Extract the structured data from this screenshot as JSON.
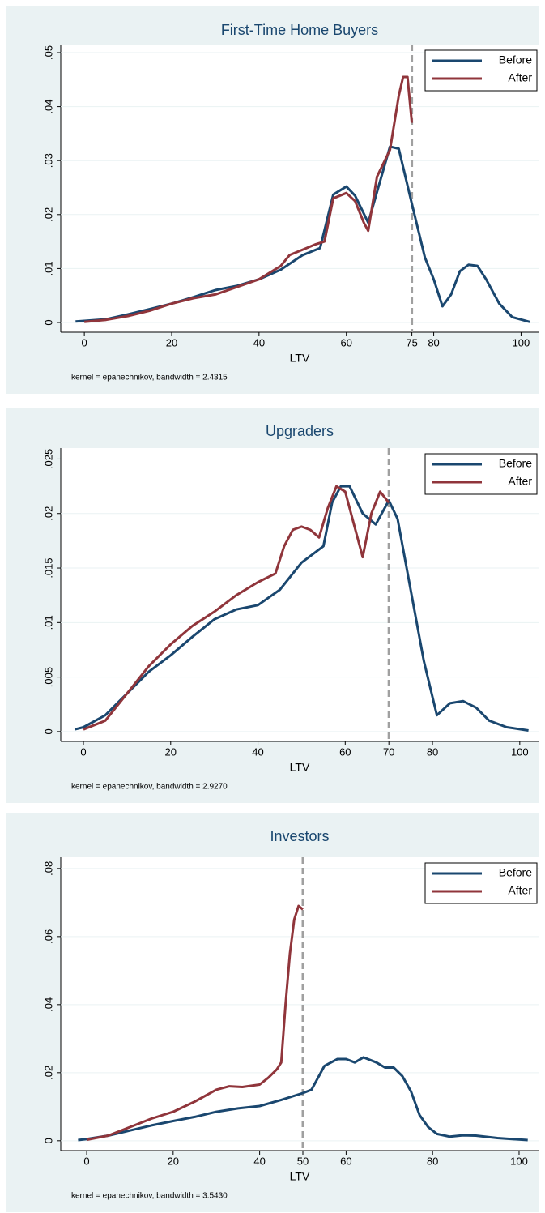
{
  "chart_data": [
    {
      "type": "line",
      "title": "First-Time Home Buyers",
      "x_label": "LTV",
      "note": "kernel = epanechnikov, bandwidth = 2.4315",
      "legend": "top-right",
      "xline": 75,
      "xlim": [
        -5.4,
        104
      ],
      "xticks": [
        0,
        20,
        40,
        60,
        75,
        80,
        100
      ],
      "ylim": [
        -0.0018,
        0.0515
      ],
      "yticks": [
        0,
        {
          "value": 0.01,
          "label": ".01"
        },
        {
          "value": 0.02,
          "label": ".02"
        },
        {
          "value": 0.03,
          "label": ".03"
        },
        {
          "value": 0.04,
          "label": ".04"
        },
        {
          "value": 0.05,
          "label": ".05"
        }
      ],
      "series": [
        {
          "name": "Before",
          "color": "#1a476f",
          "x": [
            -2,
            0,
            5,
            10,
            15,
            20,
            25,
            30,
            35,
            40,
            45,
            50,
            54,
            57,
            60,
            62,
            65,
            70,
            72,
            75,
            78,
            80,
            82,
            84,
            86,
            88,
            90,
            92,
            95,
            98,
            102
          ],
          "values": [
            0.0002,
            0.0003,
            0.0006,
            0.0015,
            0.0025,
            0.0035,
            0.0047,
            0.006,
            0.0068,
            0.008,
            0.0098,
            0.0125,
            0.0138,
            0.0237,
            0.0252,
            0.0235,
            0.0185,
            0.0326,
            0.0322,
            0.022,
            0.012,
            0.008,
            0.003,
            0.0052,
            0.0095,
            0.0107,
            0.0105,
            0.008,
            0.0035,
            0.001,
            0.0001
          ]
        },
        {
          "name": "After",
          "color": "#90353b",
          "x": [
            0,
            5,
            10,
            15,
            20,
            25,
            30,
            35,
            40,
            45,
            47,
            50,
            53,
            55,
            57,
            60,
            62,
            64,
            65,
            67,
            70,
            72,
            73,
            74,
            75
          ],
          "values": [
            0.0001,
            0.0005,
            0.0012,
            0.0022,
            0.0035,
            0.0045,
            0.0052,
            0.0066,
            0.008,
            0.0105,
            0.0125,
            0.0135,
            0.0145,
            0.015,
            0.023,
            0.024,
            0.0225,
            0.0185,
            0.017,
            0.027,
            0.032,
            0.042,
            0.0455,
            0.0455,
            0.037
          ]
        }
      ]
    },
    {
      "type": "line",
      "title": "Upgraders",
      "x_label": "LTV",
      "note": "kernel = epanechnikov, bandwidth = 2.9270",
      "legend": "top-right",
      "xline": 70,
      "xlim": [
        -5.2,
        104.3
      ],
      "xticks": [
        0,
        20,
        40,
        60,
        70,
        80,
        100
      ],
      "ylim": [
        -0.0009,
        0.026
      ],
      "yticks": [
        0,
        {
          "value": 0.005,
          "label": ".005"
        },
        {
          "value": 0.01,
          "label": ".01"
        },
        {
          "value": 0.015,
          "label": ".015"
        },
        {
          "value": 0.02,
          "label": ".02"
        },
        {
          "value": 0.025,
          "label": ".025"
        }
      ],
      "series": [
        {
          "name": "Before",
          "color": "#1a476f",
          "x": [
            -2,
            0,
            5,
            10,
            15,
            20,
            25,
            30,
            35,
            40,
            45,
            50,
            55,
            57,
            59,
            61,
            64,
            67,
            70,
            72,
            75,
            78,
            81,
            84,
            87,
            90,
            93,
            97,
            102
          ],
          "values": [
            0.0002,
            0.0004,
            0.0015,
            0.0035,
            0.0055,
            0.007,
            0.0087,
            0.0103,
            0.0112,
            0.0116,
            0.013,
            0.0155,
            0.017,
            0.021,
            0.0225,
            0.0225,
            0.02,
            0.019,
            0.0212,
            0.0195,
            0.013,
            0.0065,
            0.0015,
            0.0026,
            0.0028,
            0.0022,
            0.001,
            0.0004,
            0.0001
          ]
        },
        {
          "name": "After",
          "color": "#90353b",
          "x": [
            0,
            5,
            10,
            15,
            20,
            25,
            30,
            35,
            40,
            44,
            46,
            48,
            50,
            52,
            54,
            56,
            58,
            60,
            62,
            64,
            66,
            68,
            70
          ],
          "values": [
            0.0002,
            0.001,
            0.0035,
            0.006,
            0.008,
            0.0097,
            0.011,
            0.0125,
            0.0137,
            0.0145,
            0.017,
            0.0185,
            0.0188,
            0.0185,
            0.0178,
            0.0205,
            0.0225,
            0.022,
            0.019,
            0.016,
            0.02,
            0.022,
            0.021
          ]
        }
      ]
    },
    {
      "type": "line",
      "title": "Investors",
      "x_label": "LTV",
      "note": "kernel = epanechnikov, bandwidth = 3.5430",
      "legend": "top-right",
      "xline": 50,
      "xlim": [
        -6,
        104.5
      ],
      "xticks": [
        0,
        20,
        40,
        50,
        60,
        80,
        100
      ],
      "ylim": [
        -0.0029,
        0.0833
      ],
      "yticks": [
        0,
        {
          "value": 0.02,
          "label": ".02"
        },
        {
          "value": 0.04,
          "label": ".04"
        },
        {
          "value": 0.06,
          "label": ".06"
        },
        {
          "value": 0.08,
          "label": ".08"
        }
      ],
      "series": [
        {
          "name": "Before",
          "color": "#1a476f",
          "x": [
            -2,
            0,
            5,
            10,
            15,
            20,
            25,
            30,
            35,
            40,
            45,
            50,
            52,
            55,
            58,
            60,
            62,
            64,
            67,
            69,
            71,
            73,
            75,
            77,
            79,
            81,
            84,
            87,
            90,
            95,
            102
          ],
          "values": [
            0.0002,
            0.0005,
            0.0015,
            0.003,
            0.0045,
            0.0058,
            0.007,
            0.0085,
            0.0095,
            0.0102,
            0.012,
            0.014,
            0.015,
            0.022,
            0.024,
            0.024,
            0.023,
            0.0245,
            0.023,
            0.0215,
            0.0215,
            0.019,
            0.0145,
            0.0075,
            0.004,
            0.002,
            0.0012,
            0.0016,
            0.0015,
            0.0008,
            0.0002
          ]
        },
        {
          "name": "After",
          "color": "#90353b",
          "x": [
            0,
            5,
            10,
            15,
            20,
            25,
            30,
            33,
            36,
            40,
            42,
            44,
            45,
            46,
            47,
            48,
            49,
            50
          ],
          "values": [
            0.0003,
            0.0015,
            0.004,
            0.0065,
            0.0085,
            0.0115,
            0.015,
            0.016,
            0.0158,
            0.0165,
            0.0185,
            0.021,
            0.023,
            0.04,
            0.055,
            0.065,
            0.069,
            0.068
          ]
        }
      ]
    }
  ]
}
